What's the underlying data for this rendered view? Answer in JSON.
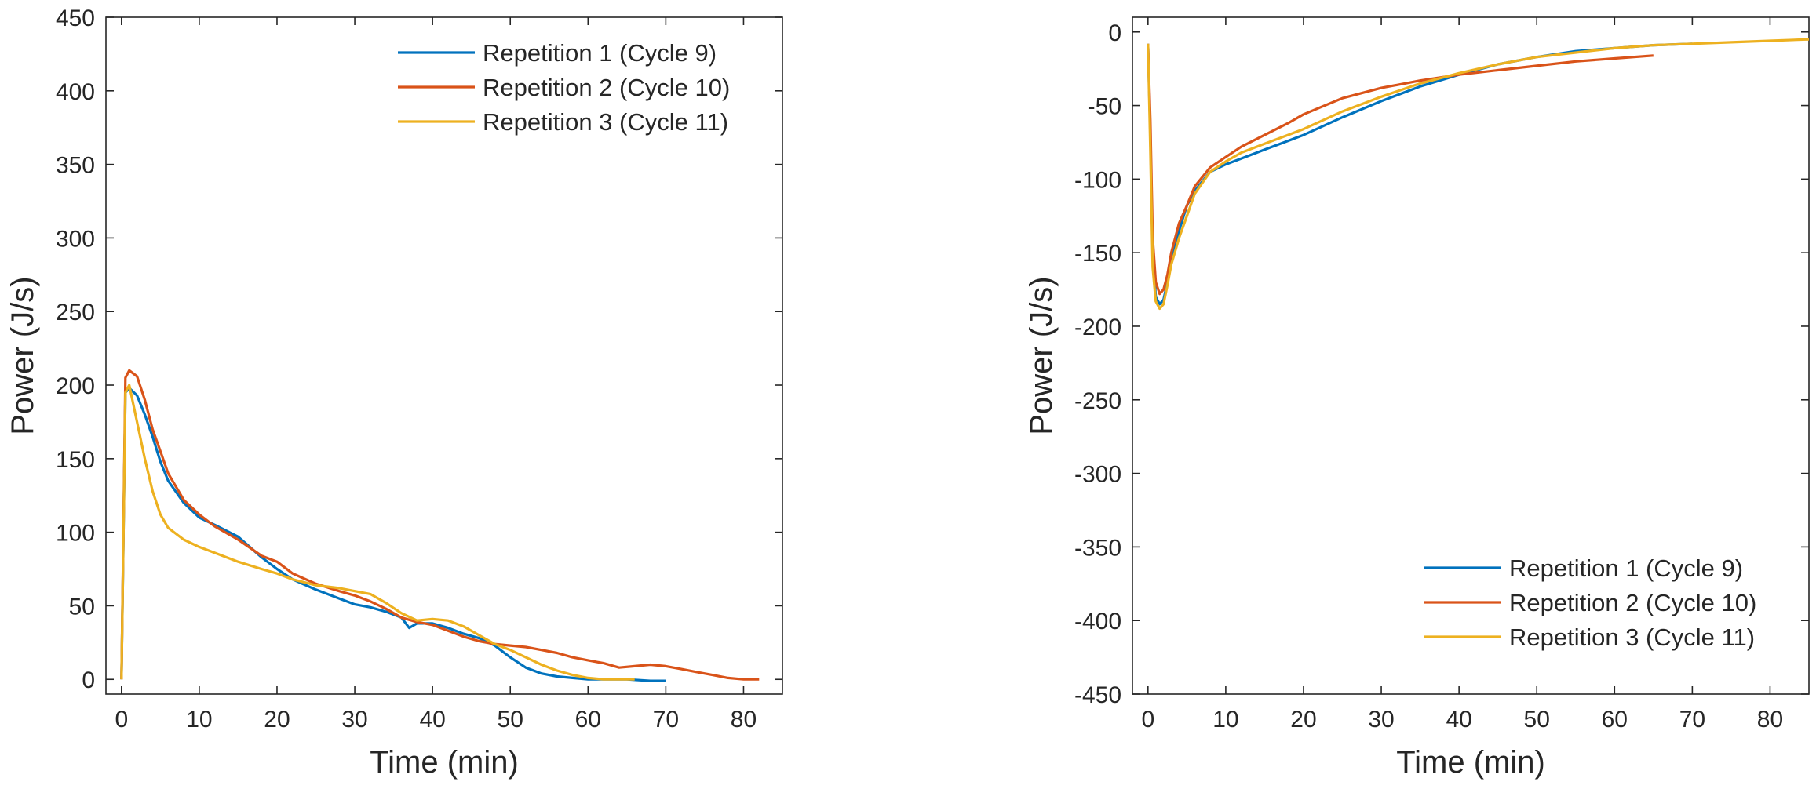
{
  "chart_data": [
    {
      "type": "line",
      "xlabel": "Time (min)",
      "ylabel": "Power (J/s)",
      "xlim": [
        -2,
        85
      ],
      "ylim": [
        -10,
        450
      ],
      "xticks": [
        0,
        10,
        20,
        30,
        40,
        50,
        60,
        70,
        80
      ],
      "yticks": [
        0,
        50,
        100,
        150,
        200,
        250,
        300,
        350,
        400,
        450
      ],
      "legend_position": "top-right",
      "series": [
        {
          "name": "Repetition 1 (Cycle 9)",
          "color": "#0072BD",
          "x": [
            0,
            0.5,
            1,
            2,
            3,
            4,
            5,
            6,
            8,
            10,
            12,
            15,
            18,
            20,
            22,
            25,
            28,
            30,
            32,
            34,
            36,
            37,
            38,
            40,
            42,
            44,
            46,
            48,
            50,
            52,
            54,
            56,
            58,
            60,
            62,
            65,
            68,
            70
          ],
          "y": [
            0,
            195,
            198,
            193,
            180,
            165,
            148,
            135,
            120,
            110,
            105,
            97,
            83,
            75,
            68,
            61,
            55,
            51,
            49,
            46,
            42,
            35,
            38,
            38,
            35,
            31,
            28,
            23,
            15,
            8,
            4,
            2,
            1,
            0,
            0,
            0,
            -1,
            -1
          ]
        },
        {
          "name": "Repetition 2 (Cycle 10)",
          "color": "#D95319",
          "x": [
            0,
            0.5,
            1,
            2,
            3,
            4,
            5,
            6,
            8,
            10,
            12,
            15,
            18,
            20,
            22,
            25,
            28,
            30,
            32,
            34,
            36,
            38,
            40,
            42,
            44,
            46,
            48,
            50,
            52,
            54,
            56,
            58,
            60,
            62,
            64,
            66,
            68,
            70,
            72,
            74,
            76,
            78,
            80,
            82
          ],
          "y": [
            0,
            205,
            210,
            206,
            190,
            170,
            155,
            140,
            122,
            112,
            104,
            95,
            84,
            80,
            72,
            65,
            60,
            57,
            53,
            48,
            42,
            39,
            37,
            33,
            29,
            26,
            24,
            23,
            22,
            20,
            18,
            15,
            13,
            11,
            8,
            9,
            10,
            9,
            7,
            5,
            3,
            1,
            0,
            0
          ]
        },
        {
          "name": "Repetition 3 (Cycle 11)",
          "color": "#EDB120",
          "x": [
            0,
            0.5,
            1,
            2,
            3,
            4,
            5,
            6,
            8,
            10,
            12,
            15,
            18,
            20,
            22,
            25,
            28,
            30,
            32,
            34,
            36,
            38,
            40,
            42,
            44,
            46,
            48,
            50,
            52,
            54,
            56,
            58,
            60,
            62,
            64,
            66
          ],
          "y": [
            0,
            195,
            200,
            175,
            150,
            128,
            112,
            103,
            95,
            90,
            86,
            80,
            75,
            72,
            68,
            64,
            62,
            60,
            58,
            52,
            45,
            40,
            41,
            40,
            36,
            30,
            24,
            20,
            15,
            10,
            6,
            3,
            1,
            0,
            0,
            0
          ]
        }
      ]
    },
    {
      "type": "line",
      "xlabel": "Time (min)",
      "ylabel": "Power (J/s)",
      "xlim": [
        -2,
        85
      ],
      "ylim": [
        -450,
        10
      ],
      "xticks": [
        0,
        10,
        20,
        30,
        40,
        50,
        60,
        70,
        80
      ],
      "yticks": [
        0,
        -50,
        -100,
        -150,
        -200,
        -250,
        -300,
        -350,
        -400,
        -450
      ],
      "legend_position": "bottom-right",
      "series": [
        {
          "name": "Repetition 1 (Cycle 9)",
          "color": "#0072BD",
          "x": [
            0,
            0.3,
            0.6,
            1,
            1.5,
            2,
            2.5,
            3,
            4,
            5,
            6,
            8,
            10,
            12,
            15,
            18,
            20,
            25,
            30,
            35,
            40,
            45,
            50,
            55,
            60,
            65,
            70
          ],
          "y": [
            -8,
            -70,
            -150,
            -180,
            -185,
            -182,
            -170,
            -155,
            -135,
            -118,
            -108,
            -95,
            -90,
            -86,
            -80,
            -74,
            -70,
            -58,
            -47,
            -37,
            -29,
            -22,
            -17,
            -13,
            -11,
            -9,
            -8
          ]
        },
        {
          "name": "Repetition 2 (Cycle 10)",
          "color": "#D95319",
          "x": [
            0,
            0.3,
            0.6,
            1,
            1.5,
            2,
            2.5,
            3,
            4,
            5,
            6,
            8,
            10,
            12,
            15,
            18,
            20,
            25,
            30,
            35,
            40,
            45,
            50,
            55,
            60,
            65
          ],
          "y": [
            -8,
            -60,
            -140,
            -170,
            -178,
            -175,
            -165,
            -150,
            -130,
            -118,
            -105,
            -92,
            -85,
            -78,
            -70,
            -62,
            -56,
            -45,
            -38,
            -33,
            -29,
            -26,
            -23,
            -20,
            -18,
            -16
          ]
        },
        {
          "name": "Repetition 3 (Cycle 11)",
          "color": "#EDB120",
          "x": [
            0,
            0.3,
            0.6,
            1,
            1.5,
            2,
            2.5,
            3,
            4,
            5,
            6,
            8,
            10,
            12,
            15,
            18,
            20,
            25,
            30,
            35,
            40,
            45,
            50,
            55,
            60,
            65,
            70,
            75,
            80,
            85
          ],
          "y": [
            -8,
            -80,
            -160,
            -183,
            -188,
            -185,
            -172,
            -158,
            -140,
            -125,
            -110,
            -95,
            -88,
            -82,
            -76,
            -70,
            -66,
            -54,
            -44,
            -35,
            -28,
            -22,
            -17,
            -14,
            -11,
            -9,
            -8,
            -7,
            -6,
            -5
          ]
        }
      ]
    }
  ]
}
